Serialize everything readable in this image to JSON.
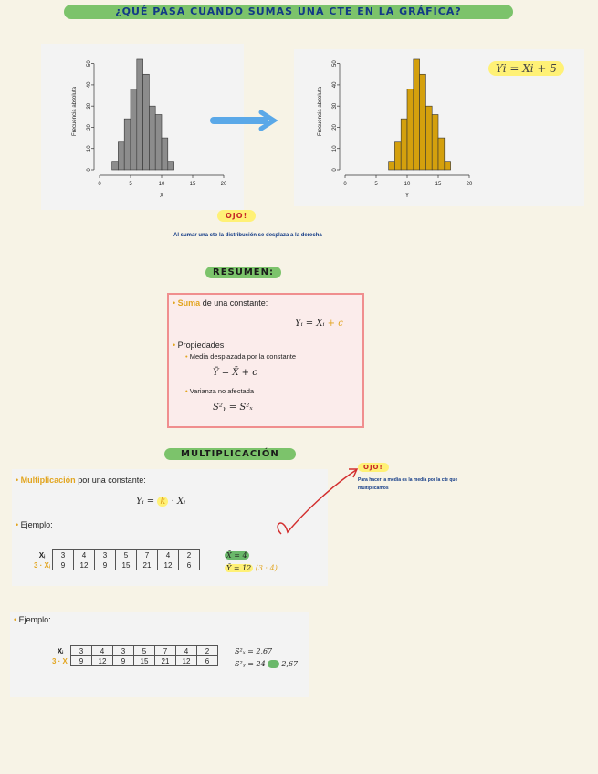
{
  "top_title": "¿QUÉ PASA CUANDO SUMAS UNA CTE EN LA GRÁFICA?",
  "hist_left": {
    "ylabel": "Frecuencia absoluta",
    "xlabel": "X",
    "xticks": [
      "0",
      "5",
      "10",
      "15",
      "20"
    ],
    "yticks": [
      "0",
      "10",
      "20",
      "30",
      "40",
      "50"
    ],
    "bar_color": "#8c8c8c"
  },
  "hist_right": {
    "ylabel": "Frecuencia absoluta",
    "xlabel": "Y",
    "xticks": [
      "0",
      "5",
      "10",
      "15",
      "20"
    ],
    "yticks": [
      "0",
      "10",
      "20",
      "30",
      "40",
      "50"
    ],
    "bar_color": "#d4a00d",
    "formula": "Yi = Xi + 5"
  },
  "chart_data": [
    {
      "type": "bar",
      "series": [
        {
          "values": [
            4,
            13,
            24,
            38,
            52,
            45,
            30,
            26,
            15,
            4
          ]
        }
      ],
      "x": [
        2,
        3,
        4,
        5,
        6,
        7,
        8,
        9,
        10,
        11
      ],
      "ylim": [
        0,
        55
      ],
      "xlim": [
        0,
        20
      ]
    },
    {
      "type": "bar",
      "series": [
        {
          "values": [
            4,
            13,
            24,
            38,
            52,
            45,
            30,
            26,
            15,
            4
          ]
        }
      ],
      "x": [
        7,
        8,
        9,
        10,
        11,
        12,
        13,
        14,
        15,
        16
      ],
      "ylim": [
        0,
        55
      ],
      "xlim": [
        0,
        20
      ]
    }
  ],
  "ojo1": "OJO!",
  "note1": "Al sumar una cte la distribución se desplaza a la derecha",
  "resumen_title": "RESUMEN:",
  "resumen": {
    "suma_word": "Suma",
    "suma_rest": " de una constante:",
    "formula_main": "Yᵢ = Xᵢ",
    "formula_c": " + c",
    "prop": "Propiedades",
    "p1": "Media desplazada por la constante",
    "f1": "Ȳ = X̄ + c",
    "p2": "Varianza no afectada",
    "f2": "S²ᵧ = S²ₓ"
  },
  "mult_title": "MULTIPLICACIÓN",
  "mult": {
    "word": "Multiplicación",
    "rest": " por una constante:",
    "formula_a": "Yᵢ = ",
    "formula_k": "k",
    "formula_b": " · Xᵢ",
    "ejemplo": "Ejemplo:",
    "row1_label": "Xᵢ",
    "row2_label": "3 · Xᵢ",
    "row1": [
      "3",
      "4",
      "3",
      "5",
      "7",
      "4",
      "2"
    ],
    "row2": [
      "9",
      "12",
      "9",
      "15",
      "21",
      "12",
      "6"
    ],
    "mean_x": "X̄ = 4",
    "mean_y": "Ȳ = 12",
    "mean_y_extra": "(3 · 4)"
  },
  "ojo2": "OJO!",
  "note2": "Para hacer la media es la media por la cte que multiplicamos",
  "ej2": {
    "ejemplo": "Ejemplo:",
    "row1_label": "Xᵢ",
    "row2_label": "3 · Xᵢ",
    "row1": [
      "3",
      "4",
      "3",
      "5",
      "7",
      "4",
      "2"
    ],
    "row2": [
      "9",
      "12",
      "9",
      "15",
      "21",
      "12",
      "6"
    ],
    "var_x": "S²ₓ = 2,67",
    "var_y": "S²ᵧ = 24",
    "var_y_extra": "2,67"
  }
}
